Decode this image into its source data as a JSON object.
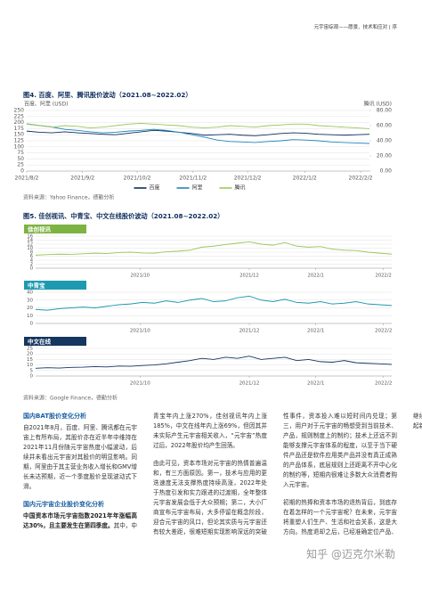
{
  "document": {
    "header": "元宇宙综观——愿景、技术和应对 | 序",
    "figure5_title": "图5. 佳创视讯、中青宝、中文在线股价波动（2021.08~2022.02）",
    "sources": [
      "资料来源：Yahoo Finance，德勤分析",
      "资料来源：Google Finance，德勤分析"
    ],
    "sections": [
      {
        "heading": "国内BAT股价变化分析",
        "paragraphs": [
          "自2021年8月，百度、阿里、腾讯都在元宇宙上有所布局，其股价亦在近半年中维持在2021年11月份随元宇宙热度小幅波动，后续并未看出元宇宙对其股价的明显影响。同期，阿里由于其主营业务收入增长和GMV增长未达预期，近一个季度股价呈现波动式下滑。"
        ]
      },
      {
        "heading": "国内元宇宙企业股价变化分析",
        "lead": "中国资本市场元宇宙指数2021年年涨幅高达30%，且主要发生在第四季度。",
        "paragraphs": [
          "其中，中青宝年内上涨270%，佳创视讯年内上涨185%，中文在线年内上涨69%，但因其并未实际产生元宇宙相关收入，“元宇宙”热度过后，2022年股价均产生回落。",
          "由此可见，资本市场对元宇宙的热情普遍温和，有三方面原因。第一，技术与应用的更迭速度无法支撑热度持续高涨，2022年处于热度引发和实力跟进的过渡期，全年整体元宇宙发展会低于大众预期；第二，大小厂商宣布元宇宙布局，大多停留在概念阶段，迎合元宇宙的风口，但论其实质与元宇宙还有较大差距，很难短期实现影响深远的突破性事件，资本投入难以短时间内兑现；第三，用户对于元宇宙的畅想受到当前技术、产品，规则制度上的制约；技术上还远不到能够支撑元宇宙体系的程度，以至于当下硬件产品还是软件应用类产品并没有真正成熟的产品体系，底层规则上还距离不开中心化的制约等，短期内很难让多数大众消费者购入元宇宙。",
          "初期的热捧和资本市场的退热背后，到底存在着怎样的一个元宇宙呢？在未来，元宇宙将重塑人们生产、生活和社会关系，这是大方向。热度退却之后，已经准确定位产品、继续深耕、搭建行业的元宇宙，将会重新引起新的热度。"
        ]
      }
    ],
    "watermark": "知乎 @迈克尔米勒"
  },
  "chart_data": [
    {
      "type": "line",
      "title": "图4. 百度、阿里、腾讯股价波动（2021.08~2022.02）",
      "ylabel": "百度、阿里 (USD)",
      "y2label": "腾讯 (USD)",
      "xlim": [
        0,
        27
      ],
      "xticks": [
        {
          "value": 0,
          "label": "2021/8/2"
        },
        {
          "value": 4.4,
          "label": "2021/9/2"
        },
        {
          "value": 8.7,
          "label": "2021/10/2"
        },
        {
          "value": 13.1,
          "label": "2021/11/2"
        },
        {
          "value": 17.4,
          "label": "2021/12/2"
        },
        {
          "value": 21.9,
          "label": "2022/1/2"
        },
        {
          "value": 26.3,
          "label": "2022/2/2"
        }
      ],
      "ylim": [
        0,
        250
      ],
      "yticks": [
        0,
        25,
        50,
        75,
        100,
        125,
        150,
        175,
        200,
        225,
        250
      ],
      "y2lim": [
        0,
        80
      ],
      "y2ticks": [
        {
          "value": 0,
          "label": "0.00"
        },
        {
          "value": 20,
          "label": "20.00"
        },
        {
          "value": 40,
          "label": "40.00"
        },
        {
          "value": 60,
          "label": "60.00"
        },
        {
          "value": 80,
          "label": "80.00"
        }
      ],
      "grid": true,
      "legend": "bottom",
      "series": [
        {
          "name": "百度",
          "color": "#0d2d5c",
          "values": [
            165,
            160,
            158,
            162,
            158,
            155,
            152,
            150,
            156,
            162,
            168,
            165,
            160,
            155,
            148,
            150,
            152,
            148,
            146,
            150,
            155,
            158,
            156,
            152,
            150,
            148,
            150,
            152
          ]
        },
        {
          "name": "阿里",
          "color": "#1f86bf",
          "values": [
            195,
            188,
            182,
            172,
            168,
            162,
            158,
            160,
            165,
            168,
            172,
            168,
            160,
            150,
            140,
            128,
            122,
            120,
            118,
            122,
            125,
            130,
            128,
            125,
            120,
            118,
            116,
            114
          ]
        },
        {
          "name": "腾讯",
          "color": "#9cc65b",
          "axis": "y2",
          "values": [
            62,
            60,
            58,
            60,
            59,
            57,
            58,
            60,
            62,
            63,
            62,
            61,
            60,
            58,
            57,
            58,
            60,
            59,
            58,
            60,
            61,
            62,
            62,
            60,
            59,
            58,
            57,
            56
          ]
        }
      ]
    },
    {
      "type": "line",
      "title": "佳创视讯",
      "label_color": "#7cb342",
      "xlim": [
        0,
        30
      ],
      "xticks": [
        {
          "value": 8.8,
          "label": "2021/10"
        },
        {
          "value": 18,
          "label": "2021/12"
        },
        {
          "value": 23.6,
          "label": "2022/1"
        },
        {
          "value": 29.3,
          "label": "2022/2"
        }
      ],
      "ylim": [
        0,
        16
      ],
      "yticks": [
        0,
        2,
        4,
        6,
        8,
        10,
        12,
        14,
        16
      ],
      "grid": true,
      "series": [
        {
          "color": "#9cc65b",
          "values": [
            6.5,
            6.8,
            7,
            6.9,
            7.2,
            7.5,
            7.3,
            7.8,
            8,
            7.6,
            7.5,
            8.2,
            8.5,
            9,
            10.5,
            11,
            11.8,
            12.5,
            13.2,
            12,
            11.5,
            12.8,
            11,
            10.5,
            10.8,
            9.5,
            9,
            8.8,
            8,
            7.5,
            7
          ]
        }
      ]
    },
    {
      "type": "line",
      "title": "中青宝",
      "label_color": "#1e9ab0",
      "xlim": [
        0,
        30
      ],
      "xticks": [
        {
          "value": 8.8,
          "label": "2021/10"
        },
        {
          "value": 18,
          "label": "2021/12"
        },
        {
          "value": 23.6,
          "label": "2022/1"
        },
        {
          "value": 29.3,
          "label": "2022/2"
        }
      ],
      "ylim": [
        0,
        40
      ],
      "yticks": [
        0,
        10,
        20,
        30,
        40
      ],
      "grid": true,
      "series": [
        {
          "color": "#1e9ab0",
          "values": [
            18,
            17,
            19,
            20,
            21,
            20,
            22,
            24,
            25,
            27,
            26,
            29,
            27,
            30,
            32,
            28,
            29,
            33,
            35,
            30,
            28,
            31,
            27,
            26,
            28,
            25,
            26,
            28,
            25,
            24,
            23
          ]
        }
      ]
    },
    {
      "type": "line",
      "title": "中文在线",
      "label_color": "#14365f",
      "xlim": [
        0,
        30
      ],
      "xticks": [
        {
          "value": 8.8,
          "label": "2021/10"
        },
        {
          "value": 18,
          "label": "2021/12"
        },
        {
          "value": 23.6,
          "label": "2022/1"
        },
        {
          "value": 29.3,
          "label": "2022/2"
        }
      ],
      "ylim": [
        0,
        25
      ],
      "yticks": [
        0,
        5,
        10,
        15,
        20,
        25
      ],
      "grid": true,
      "series": [
        {
          "color": "#14365f",
          "values": [
            7,
            7.5,
            7.2,
            7.8,
            8,
            8.5,
            8.2,
            9,
            8.8,
            9.5,
            10,
            11,
            12.5,
            14,
            16,
            15,
            17,
            16,
            18,
            15,
            16,
            17,
            14,
            15,
            13,
            12.5,
            14,
            12,
            11.5,
            11,
            10.5
          ]
        }
      ]
    }
  ]
}
